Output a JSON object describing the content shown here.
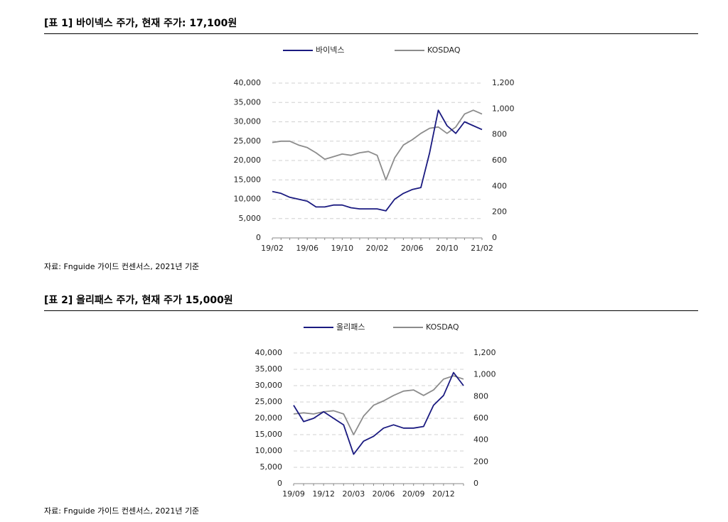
{
  "titles": [
    "[표 1] 바이넥스 주가, 현재 주가: 17,100원",
    "[표 2] 올리패스 주가, 현재 주가 15,000원"
  ],
  "sources": [
    "자료: Fnguide 가이드 컨센서스, 2021년 기준",
    "자료: Fnguide 가이드 컨센서스, 2021년 기준"
  ],
  "chart_data": [
    {
      "type": "line",
      "x": [
        "19/02",
        null,
        null,
        null,
        "19/06",
        null,
        null,
        null,
        "19/10",
        null,
        null,
        null,
        "20/02",
        null,
        null,
        null,
        "20/06",
        null,
        null,
        null,
        "20/10",
        null,
        null,
        null,
        "21/02"
      ],
      "series": [
        {
          "name": "바이넥스",
          "color": "#1a1a80",
          "values": [
            12000,
            11500,
            10500,
            10000,
            9500,
            8000,
            8000,
            8500,
            8500,
            7800,
            7500,
            7500,
            7500,
            7000,
            10000,
            11500,
            12500,
            13000,
            22000,
            33000,
            29000,
            27000,
            30000,
            29000,
            28000
          ]
        },
        {
          "name": "KOSDAQ",
          "color": "#8c8c8c",
          "axis": "y2",
          "values": [
            740,
            750,
            750,
            720,
            700,
            660,
            610,
            630,
            650,
            640,
            660,
            670,
            640,
            450,
            620,
            720,
            760,
            810,
            850,
            860,
            810,
            860,
            960,
            990,
            960
          ]
        }
      ],
      "ylim": [
        0,
        40000
      ],
      "yticks": [
        0,
        {
          "value": 5000,
          "label": "5,000"
        },
        {
          "value": 10000,
          "label": "10,000"
        },
        {
          "value": 15000,
          "label": "15,000"
        },
        {
          "value": 20000,
          "label": "20,000"
        },
        {
          "value": 25000,
          "label": "25,000"
        },
        {
          "value": 30000,
          "label": "30,000"
        },
        {
          "value": 35000,
          "label": "35,000"
        },
        {
          "value": 40000,
          "label": "40,000"
        }
      ],
      "y2lim": [
        0,
        1200
      ],
      "y2ticks": [
        0,
        200,
        400,
        600,
        800,
        {
          "value": 1000,
          "label": "1,000"
        },
        {
          "value": 1200,
          "label": "1,200"
        }
      ],
      "grid": true,
      "legend": "top"
    },
    {
      "type": "line",
      "x": [
        "19/09",
        null,
        null,
        "19/12",
        null,
        null,
        "20/03",
        null,
        null,
        "20/06",
        null,
        null,
        "20/09",
        null,
        null,
        "20/12",
        null,
        null
      ],
      "series": [
        {
          "name": "올리패스",
          "color": "#1a1a80",
          "values": [
            24000,
            19000,
            20000,
            22000,
            20000,
            18000,
            9000,
            13000,
            14500,
            17000,
            18000,
            17000,
            17000,
            17500,
            24000,
            27000,
            34000,
            30000
          ]
        },
        {
          "name": "KOSDAQ",
          "color": "#8c8c8c",
          "axis": "y2",
          "values": [
            640,
            650,
            640,
            660,
            670,
            640,
            450,
            620,
            720,
            760,
            810,
            850,
            860,
            810,
            860,
            960,
            990,
            960
          ]
        }
      ],
      "ylim": [
        0,
        40000
      ],
      "yticks": [
        0,
        {
          "value": 5000,
          "label": "5,000"
        },
        {
          "value": 10000,
          "label": "10,000"
        },
        {
          "value": 15000,
          "label": "15,000"
        },
        {
          "value": 20000,
          "label": "20,000"
        },
        {
          "value": 25000,
          "label": "25,000"
        },
        {
          "value": 30000,
          "label": "30,000"
        },
        {
          "value": 35000,
          "label": "35,000"
        },
        {
          "value": 40000,
          "label": "40,000"
        }
      ],
      "y2lim": [
        0,
        1200
      ],
      "y2ticks": [
        0,
        200,
        400,
        600,
        800,
        {
          "value": 1000,
          "label": "1,000"
        },
        {
          "value": 1200,
          "label": "1,200"
        }
      ],
      "grid": true,
      "legend": "top"
    }
  ]
}
